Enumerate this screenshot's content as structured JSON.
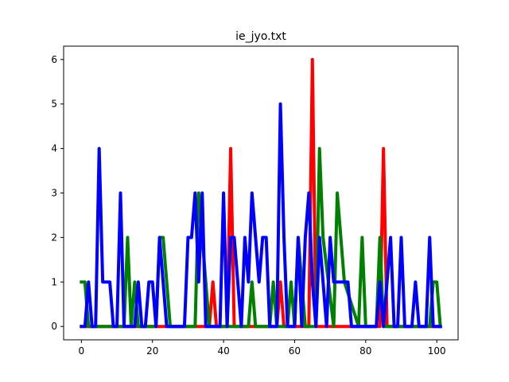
{
  "chart_data": {
    "type": "line",
    "title": "ie_jyo.txt",
    "xlabel": "",
    "ylabel": "",
    "xlim": [
      -5,
      106
    ],
    "ylim": [
      -0.3,
      6.3
    ],
    "x_ticks": [
      0,
      20,
      40,
      60,
      80,
      100
    ],
    "y_ticks": [
      0,
      1,
      2,
      3,
      4,
      5,
      6
    ],
    "grid": false,
    "series": [
      {
        "name": "red",
        "color": "#ff0000",
        "x": [
          0,
          36,
          37,
          38,
          41,
          42,
          43,
          55,
          56,
          57,
          64,
          65,
          66,
          84,
          85,
          86,
          101
        ],
        "y": [
          0,
          0,
          1,
          0,
          0,
          4,
          0,
          0,
          1,
          0,
          0,
          6,
          0,
          0,
          4,
          0,
          0
        ]
      },
      {
        "name": "green",
        "color": "#008000",
        "x": [
          0,
          1,
          2,
          12,
          13,
          14,
          15,
          16,
          21,
          22,
          23,
          24,
          25,
          32,
          33,
          34,
          35,
          36,
          47,
          48,
          49,
          53,
          54,
          55,
          58,
          59,
          60,
          61,
          62,
          63,
          66,
          67,
          68,
          71,
          72,
          73,
          74,
          78,
          79,
          80,
          83,
          84,
          85,
          98,
          99,
          100,
          101
        ],
        "y": [
          1,
          1,
          0,
          0,
          2,
          0,
          1,
          0,
          0,
          2,
          2,
          1,
          0,
          0,
          3,
          2,
          1,
          0,
          0,
          1,
          0,
          0,
          1,
          0,
          0,
          1,
          0,
          2,
          1,
          0,
          0,
          4,
          2,
          0,
          3,
          2,
          1,
          0,
          2,
          0,
          0,
          2,
          0,
          0,
          1,
          1,
          0
        ]
      },
      {
        "name": "blue",
        "color": "#0000ff",
        "x": [
          0,
          1,
          2,
          3,
          4,
          5,
          6,
          7,
          8,
          9,
          10,
          11,
          12,
          13,
          14,
          15,
          16,
          17,
          18,
          19,
          20,
          21,
          22,
          23,
          24,
          25,
          26,
          27,
          28,
          29,
          30,
          31,
          32,
          33,
          34,
          35,
          36,
          37,
          38,
          39,
          40,
          41,
          42,
          43,
          44,
          45,
          46,
          47,
          48,
          49,
          50,
          51,
          52,
          53,
          54,
          55,
          56,
          57,
          58,
          59,
          60,
          61,
          62,
          63,
          64,
          65,
          66,
          67,
          68,
          69,
          70,
          71,
          72,
          73,
          74,
          75,
          76,
          77,
          78,
          79,
          80,
          81,
          82,
          83,
          84,
          85,
          86,
          87,
          88,
          89,
          90,
          91,
          92,
          93,
          94,
          95,
          96,
          97,
          98,
          99,
          100,
          101
        ],
        "y": [
          0,
          0,
          1,
          0,
          0,
          4,
          1,
          1,
          1,
          0,
          0,
          3,
          0,
          0,
          0,
          0,
          1,
          0,
          0,
          1,
          1,
          0,
          2,
          1,
          0,
          0,
          0,
          0,
          0,
          0,
          2,
          2,
          3,
          1,
          3,
          0,
          0,
          0,
          0,
          0,
          3,
          0,
          2,
          2,
          1,
          0,
          2,
          1,
          3,
          2,
          1,
          2,
          2,
          0,
          0,
          0,
          5,
          2,
          0,
          0,
          0,
          2,
          0,
          2,
          3,
          1,
          0,
          2,
          1,
          0,
          2,
          1,
          1,
          1,
          1,
          1,
          0,
          0,
          0,
          0,
          0,
          0,
          0,
          0,
          1,
          0,
          1,
          2,
          0,
          0,
          2,
          0,
          0,
          0,
          1,
          0,
          0,
          0,
          2,
          0,
          0,
          0
        ]
      }
    ]
  }
}
